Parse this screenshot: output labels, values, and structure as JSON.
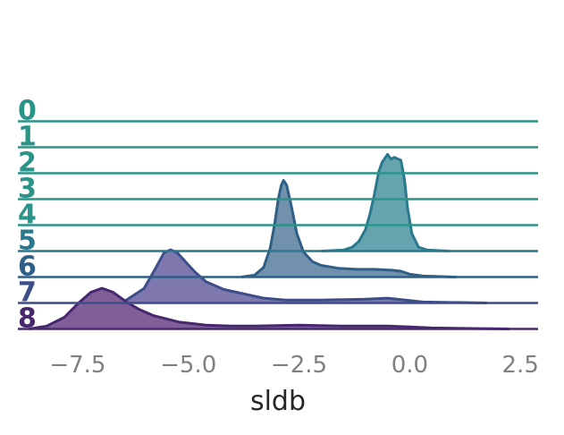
{
  "chart_data": {
    "type": "ridgeline",
    "title": "",
    "xlabel": "sldb",
    "xlim": [
      -8.85,
      2.9
    ],
    "xticks": [
      -7.5,
      -5.0,
      -2.5,
      0.0,
      2.5
    ],
    "xtick_labels": [
      "−7.5",
      "−5.0",
      "−2.5",
      "0.0",
      "2.5"
    ],
    "grid": false,
    "rows": [
      {
        "label": "0",
        "color": "#2a9489",
        "density": []
      },
      {
        "label": "1",
        "color": "#2a9489",
        "density": []
      },
      {
        "label": "2",
        "color": "#2a9489",
        "density": []
      },
      {
        "label": "3",
        "color": "#2a9489",
        "density": []
      },
      {
        "label": "4",
        "color": "#2a9489",
        "density": []
      },
      {
        "label": "5",
        "color": "#2a788e",
        "fill": "#65a3ae",
        "density": [
          [
            -2.0,
            0.0
          ],
          [
            -1.5,
            0.01
          ],
          [
            -1.3,
            0.04
          ],
          [
            -1.15,
            0.1
          ],
          [
            -1.0,
            0.22
          ],
          [
            -0.9,
            0.38
          ],
          [
            -0.8,
            0.58
          ],
          [
            -0.7,
            0.82
          ],
          [
            -0.62,
            0.92
          ],
          [
            -0.5,
            1.0
          ],
          [
            -0.42,
            0.95
          ],
          [
            -0.35,
            0.97
          ],
          [
            -0.2,
            0.94
          ],
          [
            -0.12,
            0.75
          ],
          [
            -0.05,
            0.45
          ],
          [
            0.05,
            0.18
          ],
          [
            0.2,
            0.04
          ],
          [
            0.4,
            0.01
          ],
          [
            0.9,
            0.0
          ]
        ]
      },
      {
        "label": "6",
        "color": "#2f5f86",
        "fill": "#7191ad",
        "density": [
          [
            -3.8,
            0.0
          ],
          [
            -3.5,
            0.02
          ],
          [
            -3.3,
            0.1
          ],
          [
            -3.15,
            0.3
          ],
          [
            -3.05,
            0.55
          ],
          [
            -2.97,
            0.8
          ],
          [
            -2.9,
            0.95
          ],
          [
            -2.85,
            1.0
          ],
          [
            -2.78,
            0.95
          ],
          [
            -2.68,
            0.75
          ],
          [
            -2.55,
            0.45
          ],
          [
            -2.4,
            0.26
          ],
          [
            -2.2,
            0.16
          ],
          [
            -2.0,
            0.12
          ],
          [
            -1.6,
            0.09
          ],
          [
            -1.2,
            0.08
          ],
          [
            -0.8,
            0.08
          ],
          [
            -0.4,
            0.07
          ],
          [
            -0.2,
            0.06
          ],
          [
            0.0,
            0.03
          ],
          [
            0.3,
            0.01
          ],
          [
            1.05,
            0.0
          ]
        ]
      },
      {
        "label": "7",
        "color": "#3c4d8a",
        "fill": "#7e78ae",
        "density": [
          [
            -6.8,
            0.0
          ],
          [
            -6.4,
            0.03
          ],
          [
            -6.0,
            0.15
          ],
          [
            -5.75,
            0.35
          ],
          [
            -5.55,
            0.52
          ],
          [
            -5.4,
            0.55
          ],
          [
            -5.25,
            0.52
          ],
          [
            -5.05,
            0.42
          ],
          [
            -4.85,
            0.32
          ],
          [
            -4.6,
            0.22
          ],
          [
            -4.2,
            0.14
          ],
          [
            -3.8,
            0.1
          ],
          [
            -3.3,
            0.05
          ],
          [
            -2.8,
            0.03
          ],
          [
            -2.0,
            0.03
          ],
          [
            -1.0,
            0.04
          ],
          [
            -0.5,
            0.05
          ],
          [
            -0.1,
            0.03
          ],
          [
            0.3,
            0.01
          ],
          [
            1.75,
            0.0
          ]
        ]
      },
      {
        "label": "8",
        "color": "#47286e",
        "fill": "#805e98",
        "density": [
          [
            -8.6,
            0.0
          ],
          [
            -8.2,
            0.03
          ],
          [
            -7.8,
            0.12
          ],
          [
            -7.5,
            0.26
          ],
          [
            -7.2,
            0.38
          ],
          [
            -6.95,
            0.42
          ],
          [
            -6.7,
            0.38
          ],
          [
            -6.4,
            0.28
          ],
          [
            -6.1,
            0.2
          ],
          [
            -5.8,
            0.14
          ],
          [
            -5.2,
            0.07
          ],
          [
            -4.6,
            0.04
          ],
          [
            -4.0,
            0.03
          ],
          [
            -3.5,
            0.03
          ],
          [
            -2.5,
            0.04
          ],
          [
            -1.5,
            0.03
          ],
          [
            -0.5,
            0.03
          ],
          [
            0.0,
            0.02
          ],
          [
            0.5,
            0.01
          ],
          [
            2.25,
            0.0
          ]
        ]
      }
    ]
  }
}
